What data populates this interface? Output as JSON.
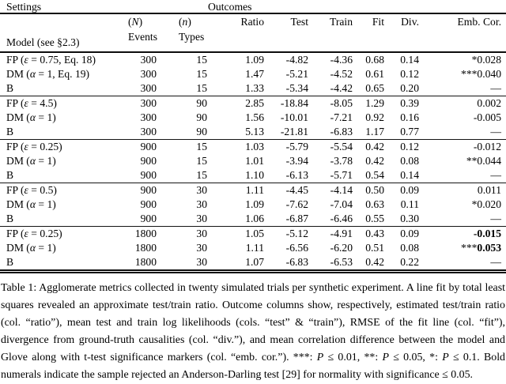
{
  "header": {
    "settings": "Settings",
    "outcomes": "Outcomes"
  },
  "columns": {
    "model": "Model (see §2.3)",
    "events": {
      "pre": "(",
      "sym": "N",
      "post": ")",
      "label": "Events"
    },
    "types": {
      "pre": "(",
      "sym": "n",
      "post": ")",
      "label": "Types"
    },
    "ratio": "Ratio",
    "test": "Test",
    "train": "Train",
    "fit": "Fit",
    "div": "Div.",
    "emb": "Emb. Cor."
  },
  "blocks": [
    {
      "rows": [
        {
          "model": {
            "pre": "FP (",
            "sym": "ε",
            "post": " = 0.75, Eq. 18)"
          },
          "events": "300",
          "types": "15",
          "ratio": "1.09",
          "test": "-4.82",
          "train": "-4.36",
          "fit": "0.68",
          "div": "0.14",
          "emb": {
            "prefix": "*",
            "value": "0.028",
            "bold": false
          }
        },
        {
          "model": {
            "pre": "DM (",
            "sym": "α",
            "post": " = 1, Eq. 19)"
          },
          "events": "300",
          "types": "15",
          "ratio": "1.47",
          "test": "-5.21",
          "train": "-4.52",
          "fit": "0.61",
          "div": "0.12",
          "emb": {
            "prefix": "***",
            "value": "0.040",
            "bold": false
          }
        },
        {
          "model": {
            "pre": "B",
            "sym": "",
            "post": ""
          },
          "events": "300",
          "types": "15",
          "ratio": "1.33",
          "test": "-5.34",
          "train": "-4.42",
          "fit": "0.65",
          "div": "0.20",
          "emb": {
            "prefix": "",
            "value": "—",
            "bold": false
          }
        }
      ]
    },
    {
      "rows": [
        {
          "model": {
            "pre": "FP (",
            "sym": "ε",
            "post": " = 4.5)"
          },
          "events": "300",
          "types": "90",
          "ratio": "2.85",
          "test": "-18.84",
          "train": "-8.05",
          "fit": "1.29",
          "div": "0.39",
          "emb": {
            "prefix": "",
            "value": "0.002",
            "bold": false
          }
        },
        {
          "model": {
            "pre": "DM (",
            "sym": "α",
            "post": " = 1)"
          },
          "events": "300",
          "types": "90",
          "ratio": "1.56",
          "test": "-10.01",
          "train": "-7.21",
          "fit": "0.92",
          "div": "0.16",
          "emb": {
            "prefix": "",
            "value": "-0.005",
            "bold": false
          }
        },
        {
          "model": {
            "pre": "B",
            "sym": "",
            "post": ""
          },
          "events": "300",
          "types": "90",
          "ratio": "5.13",
          "test": "-21.81",
          "train": "-6.83",
          "fit": "1.17",
          "div": "0.77",
          "emb": {
            "prefix": "",
            "value": "—",
            "bold": false
          }
        }
      ]
    },
    {
      "rows": [
        {
          "model": {
            "pre": "FP (",
            "sym": "ε",
            "post": " = 0.25)"
          },
          "events": "900",
          "types": "15",
          "ratio": "1.03",
          "test": "-5.79",
          "train": "-5.54",
          "fit": "0.42",
          "div": "0.12",
          "emb": {
            "prefix": "",
            "value": "-0.012",
            "bold": false
          }
        },
        {
          "model": {
            "pre": "DM (",
            "sym": "α",
            "post": " = 1)"
          },
          "events": "900",
          "types": "15",
          "ratio": "1.01",
          "test": "-3.94",
          "train": "-3.78",
          "fit": "0.42",
          "div": "0.08",
          "emb": {
            "prefix": "**",
            "value": "0.044",
            "bold": false
          }
        },
        {
          "model": {
            "pre": "B",
            "sym": "",
            "post": ""
          },
          "events": "900",
          "types": "15",
          "ratio": "1.10",
          "test": "-6.13",
          "train": "-5.71",
          "fit": "0.54",
          "div": "0.14",
          "emb": {
            "prefix": "",
            "value": "—",
            "bold": false
          }
        }
      ]
    },
    {
      "rows": [
        {
          "model": {
            "pre": "FP (",
            "sym": "ε",
            "post": " = 0.5)"
          },
          "events": "900",
          "types": "30",
          "ratio": "1.11",
          "test": "-4.45",
          "train": "-4.14",
          "fit": "0.50",
          "div": "0.09",
          "emb": {
            "prefix": "",
            "value": "0.011",
            "bold": false
          }
        },
        {
          "model": {
            "pre": "DM (",
            "sym": "α",
            "post": " = 1)"
          },
          "events": "900",
          "types": "30",
          "ratio": "1.09",
          "test": "-7.62",
          "train": "-7.04",
          "fit": "0.63",
          "div": "0.11",
          "emb": {
            "prefix": "*",
            "value": "0.020",
            "bold": false
          }
        },
        {
          "model": {
            "pre": "B",
            "sym": "",
            "post": ""
          },
          "events": "900",
          "types": "30",
          "ratio": "1.06",
          "test": "-6.87",
          "train": "-6.46",
          "fit": "0.55",
          "div": "0.30",
          "emb": {
            "prefix": "",
            "value": "—",
            "bold": false
          }
        }
      ]
    },
    {
      "rows": [
        {
          "model": {
            "pre": "FP (",
            "sym": "ε",
            "post": " = 0.25)"
          },
          "events": "1800",
          "types": "30",
          "ratio": "1.05",
          "test": "-5.12",
          "train": "-4.91",
          "fit": "0.43",
          "div": "0.09",
          "emb": {
            "prefix": "",
            "value": "-0.015",
            "bold": true
          }
        },
        {
          "model": {
            "pre": "DM (",
            "sym": "α",
            "post": " = 1)"
          },
          "events": "1800",
          "types": "30",
          "ratio": "1.11",
          "test": "-6.56",
          "train": "-6.20",
          "fit": "0.51",
          "div": "0.08",
          "emb": {
            "prefix": "***",
            "value": "0.053",
            "bold": true
          }
        },
        {
          "model": {
            "pre": "B",
            "sym": "",
            "post": ""
          },
          "events": "1800",
          "types": "30",
          "ratio": "1.07",
          "test": "-6.83",
          "train": "-6.53",
          "fit": "0.42",
          "div": "0.22",
          "emb": {
            "prefix": "",
            "value": "—",
            "bold": false
          }
        }
      ]
    }
  ],
  "caption": {
    "parts": [
      {
        "text": "Table 1: Agglomerate metrics collected in twenty simulated trials per synthetic experiment. A line fit by total least squares revealed an approximate test/train ratio. Outcome columns show, respectively, estimated test/train ratio (col. “ratio”), mean test and train log likelihoods (cols. “test” & “train”), RMSE of the fit line (col. “fit”), divergence from ground-truth causalities (col. “div.”), and mean correlation difference between the model and Glove along with t-test significance markers (col. “emb. cor.”). ***: ",
        "style": "normal"
      },
      {
        "text": "P",
        "style": "italic"
      },
      {
        "text": " ≤ 0.01, **: ",
        "style": "normal"
      },
      {
        "text": "P",
        "style": "italic"
      },
      {
        "text": " ≤ 0.05, *: ",
        "style": "normal"
      },
      {
        "text": "P",
        "style": "italic"
      },
      {
        "text": " ≤ 0.1. Bold numerals indicate the sample rejected an Anderson-Darling test [29] for normality with significance ≤ 0.05.",
        "style": "normal"
      }
    ]
  }
}
